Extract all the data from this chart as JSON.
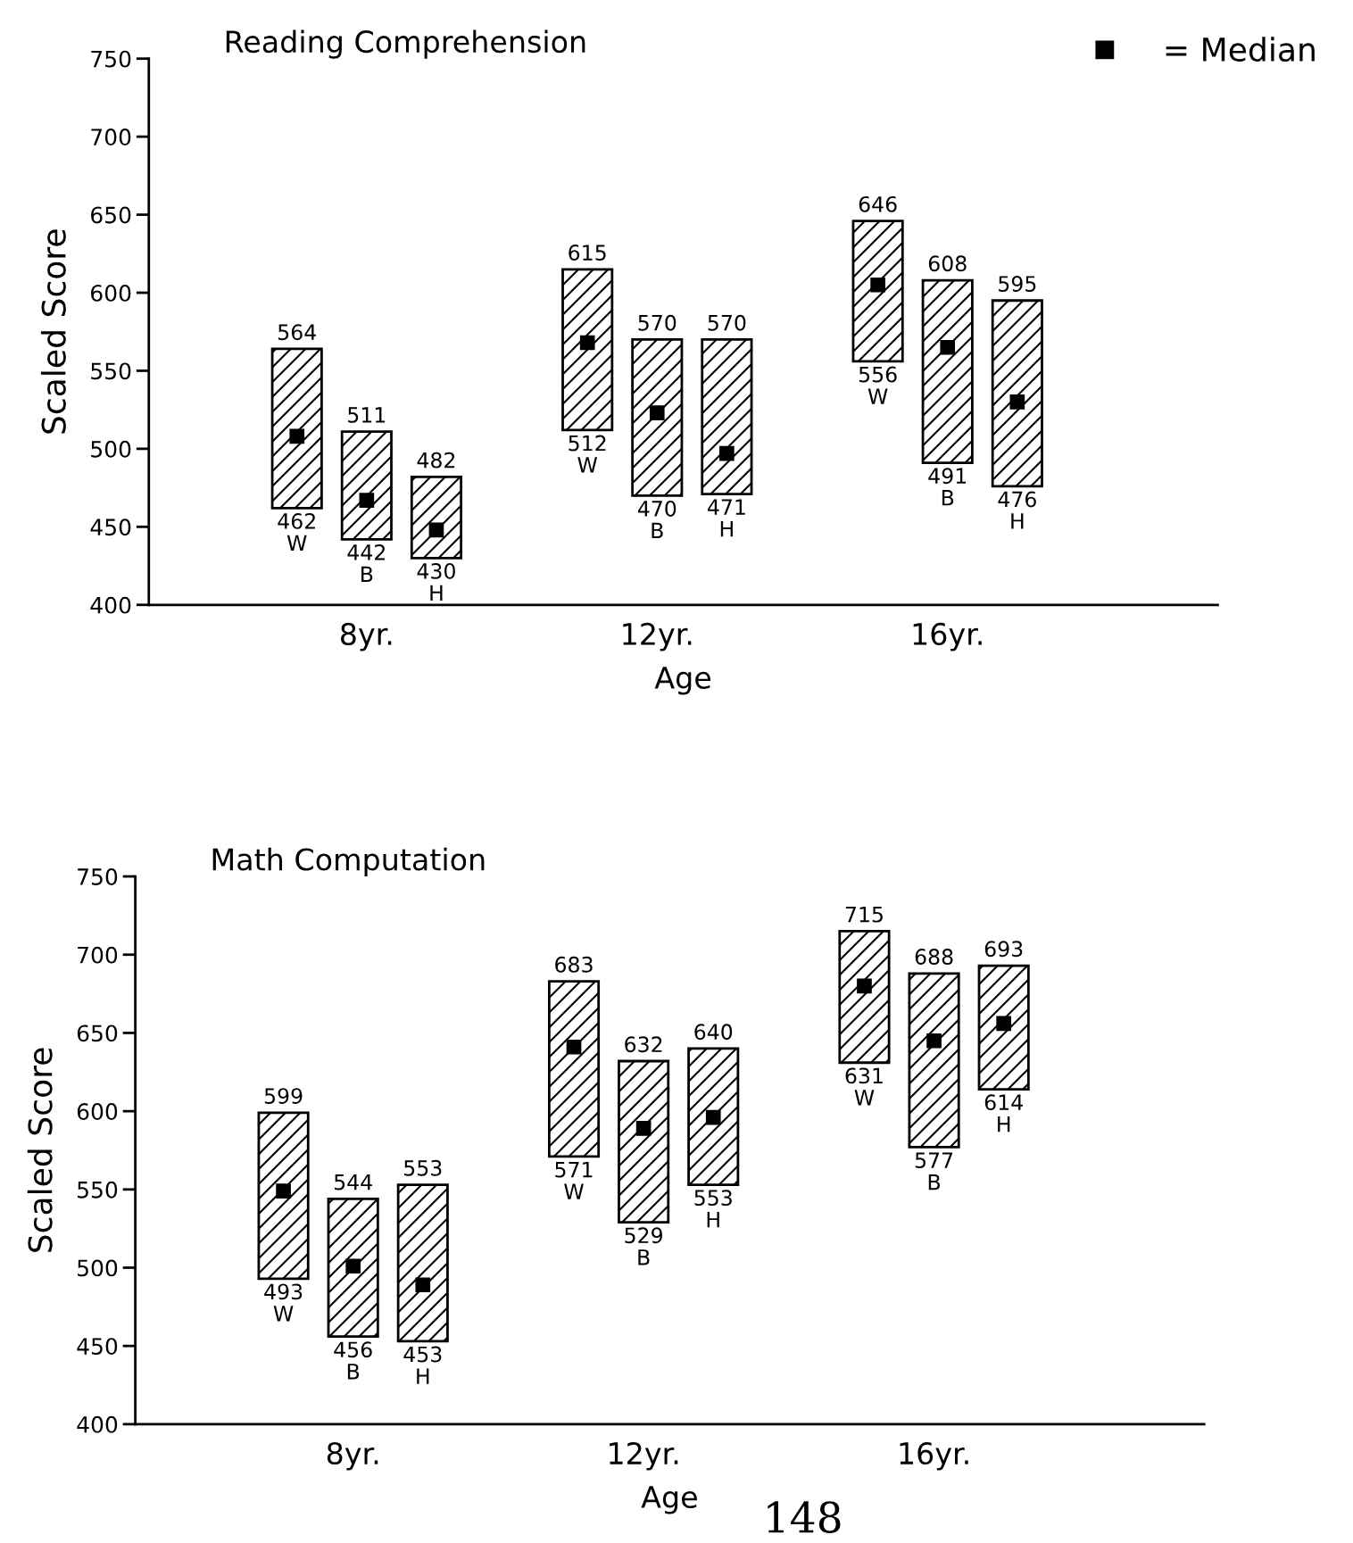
{
  "chart_data": [
    {
      "type": "box",
      "title": "Reading Comprehension",
      "xlabel": "Age",
      "ylabel": "Scaled Score",
      "annotations": [
        "= Median"
      ],
      "categories": [
        "8yr.",
        "12yr.",
        "16yr."
      ],
      "ylim": [
        400,
        750
      ],
      "yticks": [
        400,
        450,
        500,
        550,
        600,
        650,
        700,
        750
      ],
      "marker": "square",
      "grid": false,
      "series": [
        {
          "name": "W",
          "color": "#000000",
          "value_labels": [
            [
              "564",
              "462"
            ],
            [
              "615",
              "512"
            ],
            [
              "646",
              "556"
            ]
          ],
          "boxes": [
            {
              "low": 462,
              "q1": 462,
              "median": 508,
              "q3": 564,
              "high": 564
            },
            {
              "low": 512,
              "q1": 512,
              "median": 568,
              "q3": 615,
              "high": 615
            },
            {
              "low": 556,
              "q1": 556,
              "median": 605,
              "q3": 646,
              "high": 646
            }
          ]
        },
        {
          "name": "B",
          "color": "#000000",
          "value_labels": [
            [
              "511",
              "442"
            ],
            [
              "570",
              "470"
            ],
            [
              "608",
              "491"
            ]
          ],
          "boxes": [
            {
              "low": 442,
              "q1": 442,
              "median": 467,
              "q3": 511,
              "high": 511
            },
            {
              "low": 470,
              "q1": 470,
              "median": 523,
              "q3": 570,
              "high": 570
            },
            {
              "low": 491,
              "q1": 491,
              "median": 565,
              "q3": 608,
              "high": 608
            }
          ]
        },
        {
          "name": "H",
          "color": "#000000",
          "value_labels": [
            [
              "482",
              "430"
            ],
            [
              "570",
              "471"
            ],
            [
              "595",
              "476"
            ]
          ],
          "boxes": [
            {
              "low": 430,
              "q1": 430,
              "median": 448,
              "q3": 482,
              "high": 482
            },
            {
              "low": 471,
              "q1": 471,
              "median": 497,
              "q3": 570,
              "high": 570
            },
            {
              "low": 476,
              "q1": 476,
              "median": 530,
              "q3": 595,
              "high": 595
            }
          ]
        }
      ]
    },
    {
      "type": "box",
      "title": "Math Computation",
      "xlabel": "Age",
      "ylabel": "Scaled Score",
      "annotations": [
        "148"
      ],
      "categories": [
        "8yr.",
        "12yr.",
        "16yr."
      ],
      "ylim": [
        400,
        750
      ],
      "yticks": [
        400,
        450,
        500,
        550,
        600,
        650,
        700,
        750
      ],
      "marker": "square",
      "grid": false,
      "series": [
        {
          "name": "W",
          "color": "#000000",
          "value_labels": [
            [
              "599",
              "493"
            ],
            [
              "683",
              "571"
            ],
            [
              "715",
              "631"
            ]
          ],
          "boxes": [
            {
              "low": 493,
              "q1": 493,
              "median": 549,
              "q3": 599,
              "high": 599
            },
            {
              "low": 571,
              "q1": 571,
              "median": 641,
              "q3": 683,
              "high": 683
            },
            {
              "low": 631,
              "q1": 631,
              "median": 680,
              "q3": 715,
              "high": 715
            }
          ]
        },
        {
          "name": "B",
          "color": "#000000",
          "value_labels": [
            [
              "544",
              "456"
            ],
            [
              "632",
              "529"
            ],
            [
              "688",
              "577"
            ]
          ],
          "boxes": [
            {
              "low": 456,
              "q1": 456,
              "median": 501,
              "q3": 544,
              "high": 544
            },
            {
              "low": 529,
              "q1": 529,
              "median": 589,
              "q3": 632,
              "high": 632
            },
            {
              "low": 577,
              "q1": 577,
              "median": 645,
              "q3": 688,
              "high": 688
            }
          ]
        },
        {
          "name": "H",
          "color": "#000000",
          "value_labels": [
            [
              "553",
              "453"
            ],
            [
              "640",
              "553"
            ],
            [
              "693",
              "614"
            ]
          ],
          "boxes": [
            {
              "low": 453,
              "q1": 453,
              "median": 489,
              "q3": 553,
              "high": 553
            },
            {
              "low": 553,
              "q1": 553,
              "median": 596,
              "q3": 640,
              "high": 640
            },
            {
              "low": 614,
              "q1": 614,
              "median": 656,
              "q3": 693,
              "high": 693
            }
          ]
        }
      ]
    }
  ]
}
